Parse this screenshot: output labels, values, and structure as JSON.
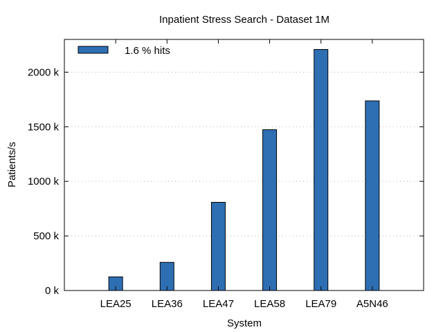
{
  "chart_data": {
    "type": "bar",
    "title": "Inpatient Stress Search - Dataset 1M",
    "xlabel": "System",
    "ylabel": "Patients/s",
    "categories": [
      "LEA25",
      "LEA36",
      "LEA47",
      "LEA58",
      "LEA79",
      "A5N46"
    ],
    "series": [
      {
        "name": "1.6 % hits",
        "values": [
          125000,
          258000,
          808000,
          1473000,
          2208000,
          1737000
        ],
        "color": "#2e6fb4"
      }
    ],
    "ylim": [
      0,
      2300000
    ],
    "yticks": [
      0,
      500000,
      1000000,
      1500000,
      2000000
    ],
    "ytick_labels": [
      "0 k",
      "500 k",
      "1000 k",
      "1500 k",
      "2000 k"
    ],
    "grid": true,
    "legend": "top-left"
  }
}
